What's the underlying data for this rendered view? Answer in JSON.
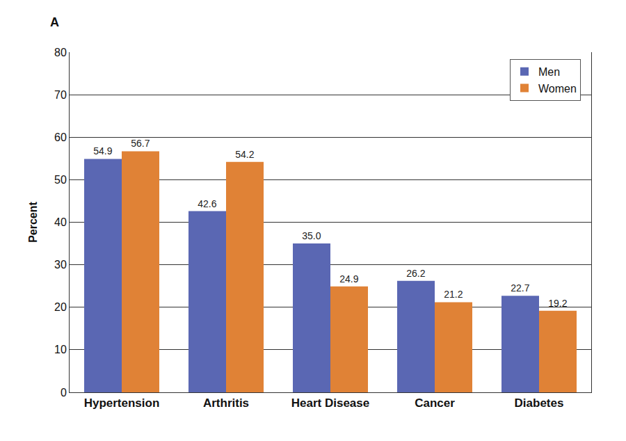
{
  "chart_data": {
    "type": "bar",
    "title": "A",
    "y_label": "Percent",
    "categories": [
      "Hypertension",
      "Arthritis",
      "Heart Disease",
      "Cancer",
      "Diabetes"
    ],
    "series": [
      {
        "name": "Men",
        "color": "#5a67b3",
        "values": [
          54.9,
          42.6,
          35.0,
          26.2,
          22.7
        ],
        "value_labels": [
          "54.9",
          "42.6",
          "35.0",
          "26.2",
          "22.7"
        ]
      },
      {
        "name": "Women",
        "color": "#e08236",
        "values": [
          56.7,
          54.2,
          24.9,
          21.2,
          19.2
        ],
        "value_labels": [
          "56.7",
          "54.2",
          "24.9",
          "21.2",
          "19.2"
        ]
      }
    ],
    "ylim": [
      0,
      80
    ],
    "yticks": [
      0,
      10,
      20,
      30,
      40,
      50,
      60,
      70,
      80
    ],
    "grid": true,
    "legend": "top-right",
    "data_labels": true
  }
}
